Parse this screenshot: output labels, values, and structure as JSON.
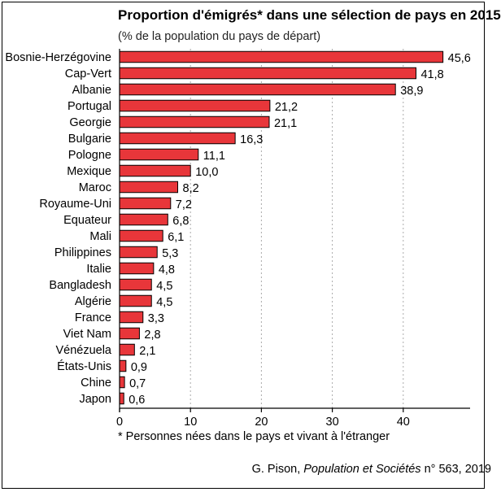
{
  "title": "Proportion d'émigrés* dans une sélection de pays en 2015",
  "subtitle": "(% de la population du pays de départ)",
  "footnote": "* Personnes nées dans le pays et vivant à l'étranger",
  "source": {
    "author": "G. Pison, ",
    "publication": "Population et Sociétés",
    "issue": " n° 563, 2019"
  },
  "colors": {
    "bar": "#e8363a",
    "bar_stroke": "#000000",
    "axis": "#000000",
    "grid": "#aaaaaa"
  },
  "chart_data": {
    "type": "bar",
    "orientation": "horizontal",
    "categories": [
      "Bosnie-Herzégovine",
      "Cap-Vert",
      "Albanie",
      "Portugal",
      "Georgie",
      "Bulgarie",
      "Pologne",
      "Mexique",
      "Maroc",
      "Royaume-Uni",
      "Equateur",
      "Mali",
      "Philippines",
      "Italie",
      "Bangladesh",
      "Algérie",
      "France",
      "Viet Nam",
      "Vénézuela",
      "États-Unis",
      "Chine",
      "Japon"
    ],
    "values": [
      45.6,
      41.8,
      38.9,
      21.2,
      21.1,
      16.3,
      11.1,
      10.0,
      8.2,
      7.2,
      6.8,
      6.1,
      5.3,
      4.8,
      4.5,
      4.5,
      3.3,
      2.8,
      2.1,
      0.9,
      0.7,
      0.6
    ],
    "value_labels": [
      "45,6",
      "41,8",
      "38,9",
      "21,2",
      "21,1",
      "16,3",
      "11,1",
      "10,0",
      "8,2",
      "7,2",
      "6,8",
      "6,1",
      "5,3",
      "4,8",
      "4,5",
      "4,5",
      "3,3",
      "2,8",
      "2,1",
      "0,9",
      "0,7",
      "0,6"
    ],
    "xlim": [
      0,
      50
    ],
    "xticks": [
      0,
      10,
      20,
      30,
      40
    ],
    "xtick_labels": [
      "0",
      "10",
      "20",
      "30",
      "40"
    ],
    "grid": "vertical-dashed"
  }
}
